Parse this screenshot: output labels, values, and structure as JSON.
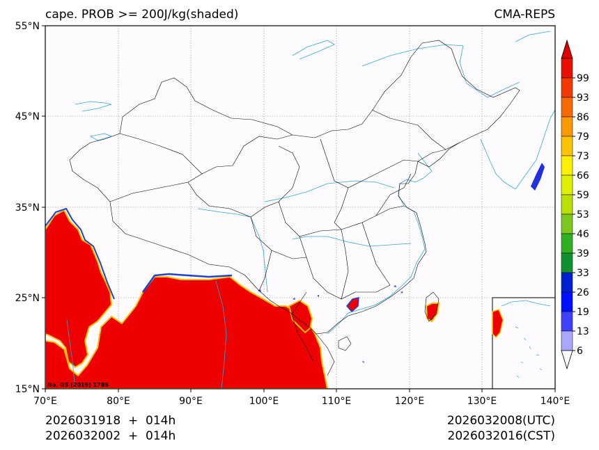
{
  "title_left": "cape. PROB >= 200J/kg(shaded)",
  "title_right": "CMA-REPS",
  "y_ticks": [
    "55°N",
    "45°N",
    "35°N",
    "25°N",
    "15°N"
  ],
  "x_ticks": [
    "70°E",
    "80°E",
    "90°E",
    "100°E",
    "110°E",
    "120°E",
    "130°E",
    "140°E"
  ],
  "watermark": "No. GS (2019) 1786",
  "footer": {
    "left_line1": "2026031918  +  014h",
    "left_line2": "2026032002  +  014h",
    "right_line1": "2026032008(UTC)",
    "right_line2": "2026032016(CST)"
  },
  "colorbar": {
    "labels": [
      "99",
      "93",
      "86",
      "79",
      "73",
      "66",
      "59",
      "53",
      "46",
      "39",
      "33",
      "26",
      "19",
      "13",
      "6"
    ],
    "colors": [
      "#e81000",
      "#f03a00",
      "#f86a00",
      "#fb9a00",
      "#fcc400",
      "#fdf000",
      "#dcf000",
      "#b8e000",
      "#7cc820",
      "#30b020",
      "#109030",
      "#0020d0",
      "#0010ff",
      "#4040ff",
      "#a8a8ff"
    ],
    "top_extend_color": "#e00000",
    "bottom_extend_color": "#ffffff"
  },
  "colors": {
    "map_bg": "#fdfbfd",
    "border": "#000000",
    "river": "#30a8d8",
    "grid": "#888888",
    "high_prob": "#ee0000"
  }
}
